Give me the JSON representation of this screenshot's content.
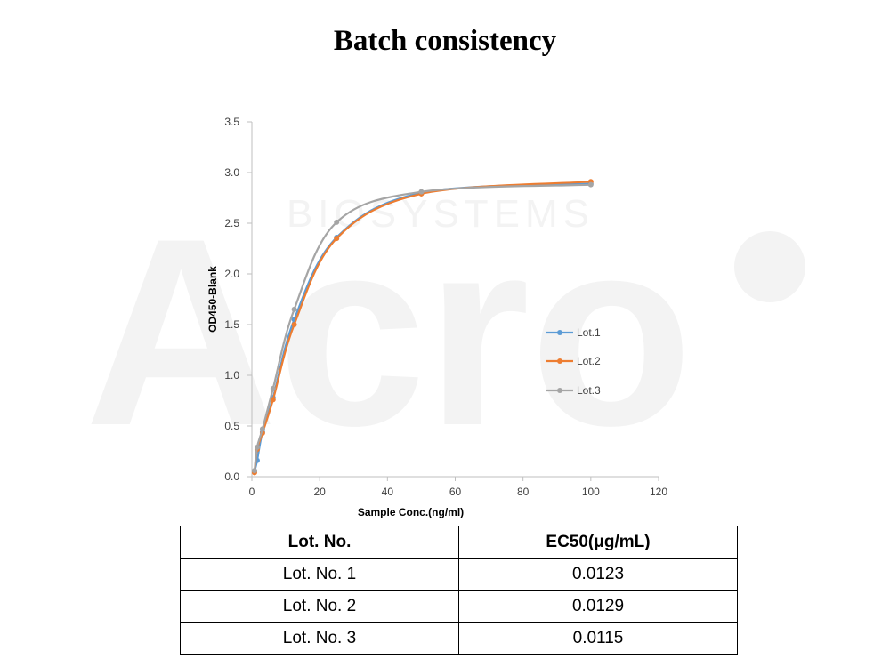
{
  "page": {
    "title": "Batch consistency"
  },
  "watermark": {
    "brand": "Acro",
    "subtitle": "BIOSYSTEMS"
  },
  "chart_data": {
    "type": "line",
    "xlabel": "Sample Conc.(ng/ml)",
    "ylabel": "OD450-Blank",
    "xlim": [
      0,
      120
    ],
    "ylim": [
      0,
      3.5
    ],
    "xticks": [
      0,
      20,
      40,
      60,
      80,
      100,
      120
    ],
    "yticks": [
      0.0,
      0.5,
      1.0,
      1.5,
      2.0,
      2.5,
      3.0,
      3.5
    ],
    "xtick_labels": [
      "0",
      "20",
      "40",
      "60",
      "80",
      "100",
      "120"
    ],
    "ytick_labels": [
      "0.0",
      "0.5",
      "1.0",
      "1.5",
      "2.0",
      "2.5",
      "3.0",
      "3.5"
    ],
    "grid": false,
    "legend": "center-right",
    "series": [
      {
        "name": "Lot.1",
        "color": "#5B9BD5",
        "x": [
          0.78,
          1.56,
          3.13,
          6.25,
          12.5,
          25,
          50,
          100
        ],
        "y": [
          0.05,
          0.16,
          0.44,
          0.78,
          1.55,
          2.36,
          2.8,
          2.89
        ]
      },
      {
        "name": "Lot.2",
        "color": "#ED7D31",
        "x": [
          0.78,
          1.56,
          3.13,
          6.25,
          12.5,
          25,
          50,
          100
        ],
        "y": [
          0.04,
          0.27,
          0.43,
          0.76,
          1.5,
          2.35,
          2.79,
          2.91
        ]
      },
      {
        "name": "Lot.3",
        "color": "#A5A5A5",
        "x": [
          0.78,
          1.56,
          3.13,
          6.25,
          12.5,
          25,
          50,
          100
        ],
        "y": [
          0.06,
          0.29,
          0.47,
          0.87,
          1.65,
          2.51,
          2.81,
          2.88
        ]
      }
    ]
  },
  "table": {
    "headers": [
      "Lot. No.",
      "EC50(μg/mL)"
    ],
    "rows": [
      [
        "Lot. No. 1",
        "0.0123"
      ],
      [
        "Lot. No. 2",
        "0.0129"
      ],
      [
        "Lot. No. 3",
        "0.0115"
      ]
    ]
  }
}
